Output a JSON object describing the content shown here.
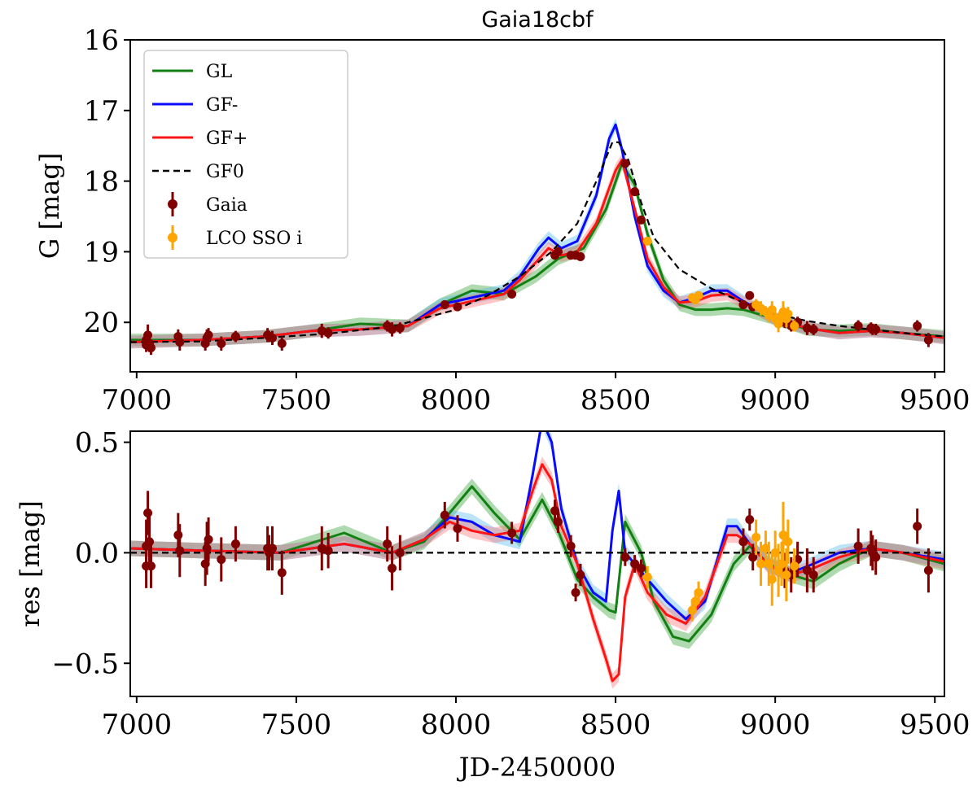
{
  "chart_data": [
    {
      "type": "line",
      "panel": "top",
      "title": "Gaia18cbf",
      "xlabel": "",
      "ylabel": "G [mag]",
      "xlim": [
        6980,
        9530
      ],
      "ylim": [
        20.7,
        16.0
      ],
      "y_inverted": true,
      "xticks": [
        7000,
        7500,
        8000,
        8500,
        9000,
        9500
      ],
      "yticks": [
        16,
        17,
        18,
        19,
        20
      ],
      "legend": {
        "placement": "top-left",
        "entries": [
          {
            "label": "GL",
            "color": "#138013",
            "style": "solid"
          },
          {
            "label": "GF-",
            "color": "#0a0aff",
            "style": "solid"
          },
          {
            "label": "GF+",
            "color": "#ff1414",
            "style": "solid"
          },
          {
            "label": "GF0",
            "color": "#000000",
            "style": "dashed"
          },
          {
            "label": "Gaia",
            "color": "#800000",
            "style": "errorbar"
          },
          {
            "label": "LCO SSO i",
            "color": "#ffa500",
            "style": "errorbar"
          }
        ]
      },
      "series": [
        {
          "name": "GL",
          "color": "#138013",
          "x": [
            6980,
            7200,
            7400,
            7550,
            7700,
            7850,
            7950,
            8050,
            8150,
            8250,
            8320,
            8400,
            8470,
            8520,
            8560,
            8600,
            8650,
            8700,
            8750,
            8800,
            8850,
            8900,
            9000,
            9100,
            9200,
            9300,
            9400,
            9530
          ],
          "y": [
            20.25,
            20.25,
            20.2,
            20.12,
            20.02,
            20.05,
            19.75,
            19.55,
            19.6,
            19.35,
            19.1,
            18.95,
            18.4,
            17.75,
            18.05,
            18.75,
            19.4,
            19.75,
            19.82,
            19.82,
            19.8,
            19.82,
            19.95,
            20.1,
            20.12,
            20.1,
            20.15,
            20.2
          ]
        },
        {
          "name": "GF-",
          "color": "#0a0aff",
          "x": [
            6980,
            7200,
            7400,
            7550,
            7700,
            7850,
            7950,
            8050,
            8150,
            8200,
            8260,
            8290,
            8330,
            8380,
            8440,
            8480,
            8500,
            8520,
            8560,
            8600,
            8650,
            8700,
            8750,
            8800,
            8850,
            8900,
            9000,
            9100,
            9200,
            9300,
            9400,
            9530
          ],
          "y": [
            20.28,
            20.25,
            20.2,
            20.12,
            20.1,
            20.05,
            19.75,
            19.65,
            19.55,
            19.35,
            18.95,
            18.8,
            18.95,
            18.85,
            18.2,
            17.4,
            17.2,
            17.55,
            18.5,
            19.2,
            19.55,
            19.72,
            19.65,
            19.55,
            19.55,
            19.7,
            19.95,
            20.08,
            20.15,
            20.12,
            20.15,
            20.22
          ]
        },
        {
          "name": "GF+",
          "color": "#ff1414",
          "x": [
            6980,
            7200,
            7400,
            7550,
            7700,
            7850,
            7950,
            8050,
            8150,
            8200,
            8260,
            8290,
            8330,
            8380,
            8440,
            8480,
            8500,
            8520,
            8560,
            8600,
            8650,
            8700,
            8750,
            8800,
            8850,
            8900,
            9000,
            9100,
            9200,
            9300,
            9400,
            9530
          ],
          "y": [
            20.28,
            20.25,
            20.2,
            20.12,
            20.1,
            20.05,
            19.8,
            19.7,
            19.6,
            19.4,
            19.1,
            18.95,
            19.05,
            19.0,
            18.6,
            18.1,
            17.85,
            17.7,
            18.4,
            19.1,
            19.5,
            19.72,
            19.7,
            19.62,
            19.6,
            19.72,
            19.95,
            20.08,
            20.15,
            20.12,
            20.15,
            20.22
          ]
        },
        {
          "name": "GF0",
          "color": "#000000",
          "x": [
            6980,
            7200,
            7400,
            7600,
            7800,
            8000,
            8100,
            8200,
            8300,
            8380,
            8440,
            8490,
            8510,
            8540,
            8580,
            8620,
            8700,
            8800,
            8900,
            9000,
            9100,
            9200,
            9300,
            9400,
            9530
          ],
          "y": [
            20.28,
            20.27,
            20.22,
            20.16,
            20.06,
            19.82,
            19.62,
            19.35,
            19.0,
            18.6,
            18.0,
            17.45,
            17.45,
            17.7,
            18.3,
            18.8,
            19.25,
            19.52,
            19.72,
            19.88,
            19.98,
            20.05,
            20.1,
            20.15,
            20.2
          ]
        }
      ],
      "points": [
        {
          "name": "Gaia",
          "color": "#800000",
          "x": [
            7030,
            7030,
            7035,
            7040,
            7045,
            7130,
            7135,
            7215,
            7220,
            7225,
            7265,
            7310,
            7410,
            7415,
            7425,
            7455,
            7580,
            7600,
            7785,
            7800,
            7825,
            7965,
            8005,
            8175,
            8310,
            8320,
            8360,
            8375,
            8390,
            8530,
            8560,
            8580,
            8900,
            8920,
            8930,
            9030,
            9050,
            9070,
            9100,
            9120,
            9260,
            9300,
            9305,
            9315,
            9445,
            9480
          ],
          "y": [
            20.25,
            20.32,
            20.18,
            20.3,
            20.36,
            20.2,
            20.28,
            20.3,
            20.22,
            20.18,
            20.3,
            20.2,
            20.18,
            20.2,
            20.22,
            20.3,
            20.12,
            20.15,
            20.05,
            20.1,
            20.08,
            19.75,
            19.78,
            19.6,
            19.05,
            19.0,
            19.05,
            19.05,
            19.07,
            17.75,
            18.15,
            18.55,
            19.75,
            19.62,
            19.78,
            20.0,
            20.05,
            20.0,
            20.08,
            20.1,
            20.05,
            20.08,
            20.1,
            20.1,
            20.05,
            20.25
          ],
          "err": [
            0.12,
            0.1,
            0.15,
            0.12,
            0.1,
            0.1,
            0.12,
            0.1,
            0.12,
            0.1,
            0.1,
            0.08,
            0.1,
            0.08,
            0.1,
            0.1,
            0.1,
            0.08,
            0.08,
            0.1,
            0.08,
            0.06,
            0.06,
            0.05,
            0.05,
            0.05,
            0.05,
            0.04,
            0.05,
            0.04,
            0.04,
            0.04,
            0.06,
            0.05,
            0.06,
            0.08,
            0.08,
            0.08,
            0.1,
            0.08,
            0.08,
            0.08,
            0.08,
            0.08,
            0.08,
            0.1
          ]
        },
        {
          "name": "LCO SSO i",
          "color": "#ffa500",
          "x": [
            8600,
            8740,
            8750,
            8760,
            8940,
            8955,
            8970,
            8980,
            8990,
            9000,
            9010,
            9020,
            9025,
            9035,
            9040,
            9060
          ],
          "y": [
            18.85,
            19.65,
            19.68,
            19.62,
            19.75,
            19.8,
            19.85,
            19.9,
            19.82,
            19.95,
            20.02,
            19.9,
            19.85,
            19.95,
            19.88,
            20.05
          ],
          "err": [
            0.05,
            0.05,
            0.05,
            0.05,
            0.08,
            0.1,
            0.08,
            0.1,
            0.12,
            0.1,
            0.12,
            0.1,
            0.15,
            0.12,
            0.1,
            0.08
          ]
        }
      ]
    },
    {
      "type": "line",
      "panel": "bottom",
      "xlabel": "JD-2450000",
      "ylabel": "res [mag]",
      "xlim": [
        6980,
        9530
      ],
      "ylim": [
        -0.65,
        0.55
      ],
      "xticks": [
        7000,
        7500,
        8000,
        8500,
        9000,
        9500
      ],
      "yticks": [
        0.5,
        0.0,
        -0.5
      ],
      "ytick_labels": [
        "0.5",
        "0.0",
        "−0.5"
      ],
      "series": [
        {
          "name": "GL",
          "color": "#138013",
          "x": [
            6980,
            7200,
            7450,
            7650,
            7800,
            7900,
            7980,
            8050,
            8120,
            8200,
            8270,
            8320,
            8380,
            8430,
            8480,
            8500,
            8530,
            8580,
            8620,
            8680,
            8730,
            8800,
            8870,
            8920,
            8980,
            9050,
            9120,
            9200,
            9300,
            9400,
            9530
          ],
          "y": [
            0.02,
            0.01,
            0.0,
            0.09,
            0.0,
            0.05,
            0.18,
            0.3,
            0.18,
            0.06,
            0.24,
            0.1,
            -0.12,
            -0.2,
            -0.26,
            -0.27,
            0.14,
            0.0,
            -0.22,
            -0.38,
            -0.4,
            -0.28,
            -0.05,
            0.03,
            -0.05,
            -0.1,
            -0.13,
            -0.05,
            0.02,
            0.0,
            -0.05
          ]
        },
        {
          "name": "GF-",
          "color": "#0a0aff",
          "x": [
            6980,
            7200,
            7450,
            7650,
            7800,
            7900,
            7980,
            8050,
            8120,
            8200,
            8240,
            8270,
            8300,
            8330,
            8380,
            8430,
            8470,
            8490,
            8510,
            8530,
            8560,
            8600,
            8660,
            8720,
            8780,
            8850,
            8880,
            8920,
            8980,
            9050,
            9120,
            9200,
            9300,
            9400,
            9530
          ],
          "y": [
            0.02,
            0.01,
            0.0,
            0.04,
            0.0,
            0.06,
            0.16,
            0.14,
            0.08,
            0.05,
            0.35,
            0.6,
            0.5,
            0.2,
            -0.05,
            -0.18,
            -0.22,
            0.1,
            0.28,
            0.0,
            -0.05,
            -0.12,
            -0.22,
            -0.3,
            -0.22,
            0.12,
            0.12,
            0.04,
            -0.06,
            -0.09,
            -0.05,
            0.0,
            0.02,
            0.0,
            -0.03
          ]
        },
        {
          "name": "GF+",
          "color": "#ff1414",
          "x": [
            6980,
            7200,
            7450,
            7650,
            7800,
            7900,
            7980,
            8050,
            8120,
            8200,
            8240,
            8270,
            8300,
            8330,
            8380,
            8430,
            8470,
            8490,
            8510,
            8530,
            8560,
            8600,
            8660,
            8720,
            8780,
            8850,
            8880,
            8920,
            8980,
            9050,
            9120,
            9200,
            9300,
            9400,
            9530
          ],
          "y": [
            0.02,
            0.01,
            0.0,
            0.04,
            0.0,
            0.06,
            0.14,
            0.1,
            0.08,
            0.1,
            0.28,
            0.4,
            0.33,
            0.12,
            -0.05,
            -0.3,
            -0.48,
            -0.58,
            -0.55,
            -0.2,
            -0.05,
            -0.18,
            -0.28,
            -0.32,
            -0.2,
            0.08,
            0.08,
            0.04,
            -0.06,
            -0.1,
            -0.07,
            -0.02,
            0.02,
            0.0,
            -0.04
          ]
        },
        {
          "name": "zero",
          "color": "#000000",
          "style": "dashed",
          "x": [
            6980,
            9530
          ],
          "y": [
            0,
            0
          ]
        }
      ],
      "points": [
        {
          "name": "Gaia",
          "color": "#800000",
          "x": [
            7030,
            7030,
            7035,
            7040,
            7045,
            7130,
            7135,
            7215,
            7220,
            7225,
            7265,
            7310,
            7410,
            7415,
            7425,
            7455,
            7580,
            7600,
            7785,
            7800,
            7825,
            7965,
            8005,
            8175,
            8310,
            8320,
            8360,
            8375,
            8390,
            8530,
            8560,
            8580,
            8900,
            8920,
            8930,
            9030,
            9050,
            9070,
            9100,
            9120,
            9260,
            9300,
            9305,
            9315,
            9445,
            9480
          ],
          "y": [
            0.03,
            -0.06,
            0.18,
            0.05,
            -0.06,
            0.08,
            0.01,
            -0.05,
            0.02,
            0.06,
            -0.03,
            0.04,
            0.02,
            0.0,
            0.02,
            -0.09,
            0.02,
            0.01,
            0.04,
            -0.07,
            0.0,
            0.17,
            0.11,
            0.09,
            0.19,
            0.14,
            0.03,
            -0.18,
            -0.1,
            -0.02,
            -0.05,
            -0.07,
            0.05,
            0.15,
            -0.02,
            -0.08,
            -0.1,
            -0.03,
            -0.08,
            -0.1,
            0.03,
            0.02,
            0.0,
            -0.02,
            0.12,
            -0.08
          ],
          "err": [
            0.12,
            0.1,
            0.1,
            0.12,
            0.1,
            0.1,
            0.12,
            0.1,
            0.12,
            0.1,
            0.1,
            0.08,
            0.1,
            0.08,
            0.1,
            0.1,
            0.1,
            0.08,
            0.08,
            0.1,
            0.08,
            0.06,
            0.06,
            0.05,
            0.05,
            0.05,
            0.05,
            0.04,
            0.05,
            0.04,
            0.04,
            0.04,
            0.06,
            0.05,
            0.06,
            0.08,
            0.08,
            0.08,
            0.1,
            0.08,
            0.08,
            0.08,
            0.08,
            0.08,
            0.08,
            0.1
          ]
        },
        {
          "name": "LCO SSO i",
          "color": "#ffa500",
          "x": [
            8600,
            8740,
            8750,
            8760,
            8940,
            8955,
            8970,
            8980,
            8990,
            9000,
            9010,
            9020,
            9025,
            9035,
            9040,
            9060
          ],
          "y": [
            -0.11,
            -0.26,
            -0.22,
            -0.18,
            0.07,
            -0.05,
            0.02,
            -0.05,
            -0.12,
            0.0,
            -0.08,
            -0.05,
            0.08,
            -0.1,
            0.05,
            -0.06
          ],
          "err": [
            0.05,
            0.05,
            0.05,
            0.05,
            0.08,
            0.1,
            0.08,
            0.1,
            0.12,
            0.1,
            0.12,
            0.1,
            0.15,
            0.12,
            0.1,
            0.08
          ]
        }
      ]
    }
  ]
}
